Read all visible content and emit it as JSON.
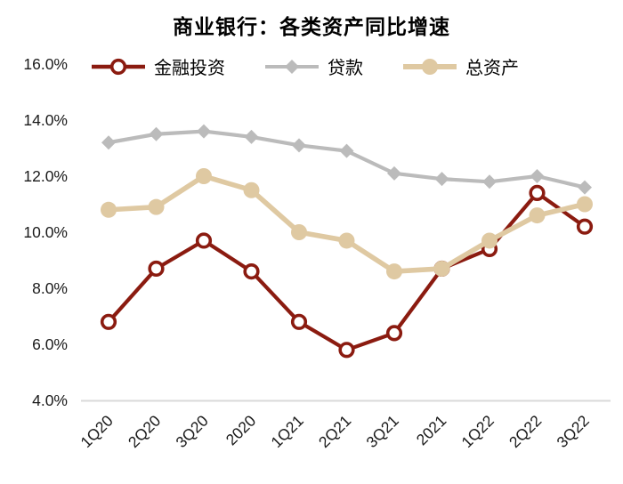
{
  "title": "商业银行：各类资产同比增速",
  "chart_data": {
    "type": "line",
    "title": "商业银行：各类资产同比增速",
    "categories": [
      "1Q20",
      "2Q20",
      "3Q20",
      "2020",
      "1Q21",
      "2Q21",
      "3Q21",
      "2021",
      "1Q22",
      "2Q22",
      "3Q22"
    ],
    "series": [
      {
        "name": "金融投资",
        "color": "#8B1B10",
        "marker": "open-circle",
        "values": [
          6.8,
          8.7,
          9.7,
          8.6,
          6.8,
          5.8,
          6.4,
          8.7,
          9.4,
          11.4,
          10.2
        ]
      },
      {
        "name": "贷款",
        "color": "#BBBBBB",
        "marker": "diamond",
        "values": [
          13.2,
          13.5,
          13.6,
          13.4,
          13.1,
          12.9,
          12.1,
          11.9,
          11.8,
          12.0,
          11.6
        ]
      },
      {
        "name": "总资产",
        "color": "#DFC9A2",
        "marker": "filled-circle",
        "values": [
          10.8,
          10.9,
          12.0,
          11.5,
          10.0,
          9.7,
          8.6,
          8.7,
          9.7,
          10.6,
          11.0
        ]
      }
    ],
    "y_axis": {
      "ticks": [
        "16.0%",
        "14.0%",
        "12.0%",
        "10.0%",
        "8.0%",
        "6.0%",
        "4.0%"
      ],
      "min": 4,
      "max": 16,
      "unit": "%"
    },
    "x_axis": {
      "label_rotation_deg": -45
    },
    "legend_position": "top",
    "grid": false,
    "axis_line_color": "#D9D9D9",
    "text_color": "#1a1a1a"
  }
}
